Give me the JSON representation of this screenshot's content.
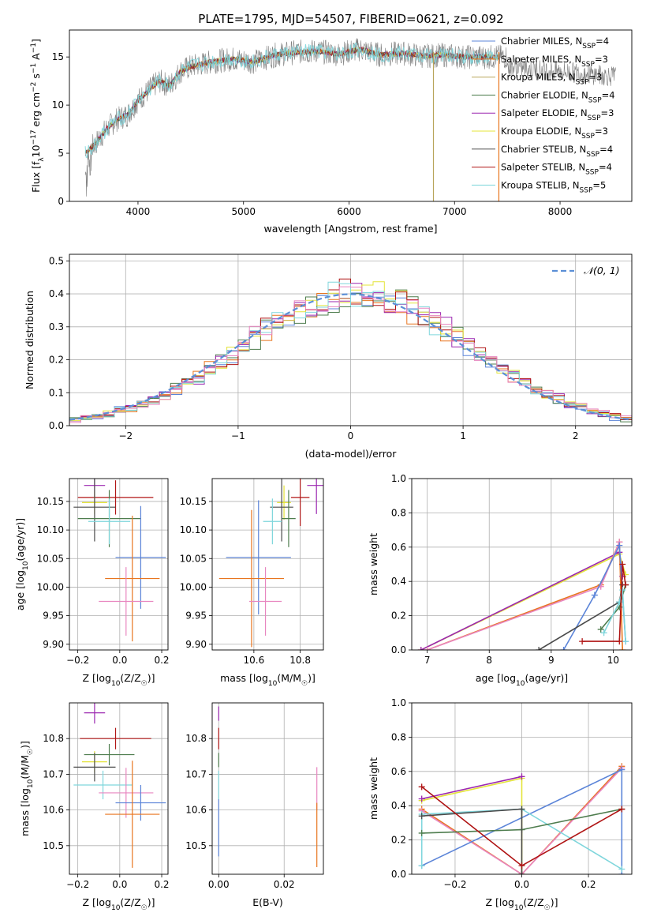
{
  "figure_title": "PLATE=1795, MJD=54507, FIBERID=0621, z=0.092",
  "colors": {
    "Chabrier MILES": "#5b84d8",
    "Salpeter MILES": "#e8751f",
    "Kroupa MILES": "#b8a45a",
    "Chabrier ELODIE": "#4e7d4e",
    "Salpeter ELODIE": "#9b27b0",
    "Kroupa ELODIE": "#e4e43a",
    "Chabrier STELIB": "#4a4a4a",
    "Salpeter STELIB": "#b01515",
    "Kroupa STELIB": "#7fd6dc",
    "pink": "#e886c0",
    "data": "#808080"
  },
  "chart_data": [
    {
      "id": "spectrum",
      "type": "line",
      "title": "PLATE=1795, MJD=54507, FIBERID=0621, z=0.092",
      "xlabel": "wavelength [Angstrom, rest frame]",
      "ylabel": "Flux [fλ10⁻¹⁷ erg cm⁻² s⁻¹ A⁻¹]",
      "xlim": [
        3350,
        8680
      ],
      "ylim": [
        0,
        17.8
      ],
      "xticks": [
        4000,
        5000,
        6000,
        7000,
        8000
      ],
      "yticks": [
        0,
        5,
        10,
        15
      ],
      "legend": "right",
      "legend_entries": [
        {
          "name": "Chabrier MILES",
          "suffix": "=4"
        },
        {
          "name": "Salpeter MILES",
          "suffix": "=3"
        },
        {
          "name": "Kroupa MILES",
          "suffix": "=3"
        },
        {
          "name": "Chabrier ELODIE",
          "suffix": "=4"
        },
        {
          "name": "Salpeter ELODIE",
          "suffix": "=3"
        },
        {
          "name": "Kroupa ELODIE",
          "suffix": "=3"
        },
        {
          "name": "Chabrier STELIB",
          "suffix": "=4"
        },
        {
          "name": "Salpeter STELIB",
          "suffix": "=4"
        },
        {
          "name": "Kroupa STELIB",
          "suffix": "=5"
        }
      ],
      "continuum": {
        "x": [
          3500,
          3600,
          3700,
          3800,
          3900,
          4000,
          4100,
          4200,
          4300,
          4400,
          4500,
          4700,
          4900,
          5100,
          5300,
          5500,
          5700,
          5900,
          6100,
          6300,
          6500,
          6700,
          6900,
          7100,
          7400
        ],
        "y": [
          5,
          6,
          7.5,
          8.5,
          9,
          10.5,
          11.5,
          12.5,
          12,
          13.5,
          14,
          14.5,
          14.8,
          14.5,
          15.2,
          15.5,
          15.6,
          15.3,
          15.8,
          15.2,
          15.4,
          15.1,
          15.2,
          15.0,
          15.0
        ]
      },
      "data_range": [
        3500,
        8530
      ],
      "model_range": [
        3500,
        7420
      ],
      "spikes": [
        {
          "x": 6800,
          "series": "Kroupa MILES"
        },
        {
          "x": 7420,
          "series": "Salpeter MILES"
        }
      ]
    },
    {
      "id": "residuals",
      "type": "histogram",
      "xlabel": "(data-model)/error",
      "ylabel": "Normed distribution",
      "xlim": [
        -2.5,
        2.5
      ],
      "ylim": [
        0,
        0.52
      ],
      "xticks": [
        -2,
        -1,
        0,
        1,
        2
      ],
      "yticks": [
        0.0,
        0.1,
        0.2,
        0.3,
        0.4,
        0.5
      ],
      "grid": true,
      "legend": "top-right",
      "reference_curve": {
        "name": "N(0,1)",
        "mean": 0,
        "sigma": 1,
        "style": "dashed"
      },
      "bin_width": 0.1
    },
    {
      "id": "age-vs-Z",
      "type": "errorbar",
      "xlabel": "Z [log10(Z/Z☉)]",
      "ylabel": "age [log10(age/yr)]",
      "xlim": [
        -0.24,
        0.23
      ],
      "ylim": [
        9.89,
        10.19
      ],
      "xticks": [
        -0.2,
        0.0,
        0.2
      ],
      "yticks": [
        9.9,
        9.95,
        10.0,
        10.05,
        10.1,
        10.15
      ],
      "grid": true,
      "points": [
        {
          "series": "Salpeter ELODIE",
          "x": -0.12,
          "xerr": 0.05,
          "y": 10.178,
          "yerr": 0.02
        },
        {
          "series": "Salpeter STELIB",
          "x": -0.02,
          "xerr": 0.18,
          "y": 10.157,
          "yerr": 0.03
        },
        {
          "series": "Kroupa ELODIE",
          "x": -0.12,
          "xerr": 0.06,
          "y": 10.148,
          "yerr": 0.02
        },
        {
          "series": "Chabrier STELIB",
          "x": -0.12,
          "xerr": 0.1,
          "y": 10.14,
          "yerr": 0.06
        },
        {
          "series": "Chabrier ELODIE",
          "x": -0.05,
          "xerr": 0.15,
          "y": 10.12,
          "yerr": 0.05
        },
        {
          "series": "Kroupa STELIB",
          "x": -0.05,
          "xerr": 0.1,
          "y": 10.115,
          "yerr": 0.04
        },
        {
          "series": "Chabrier MILES",
          "x": 0.1,
          "xerr": 0.12,
          "y": 10.052,
          "yerr": 0.09
        },
        {
          "series": "Salpeter MILES",
          "x": 0.06,
          "xerr": 0.13,
          "y": 10.015,
          "yerr": 0.11
        },
        {
          "series": "pink",
          "x": 0.03,
          "xerr": 0.13,
          "y": 9.975,
          "yerr": 0.06
        }
      ]
    },
    {
      "id": "age-vs-mass",
      "type": "errorbar",
      "xlabel": "mass [log10(M/M☉)]",
      "xlim": [
        10.42,
        10.9
      ],
      "ylim": [
        9.89,
        10.19
      ],
      "xticks": [
        10.6,
        10.8
      ],
      "yticks": [
        9.9,
        9.95,
        10.0,
        10.05,
        10.1,
        10.15
      ],
      "grid": true,
      "points": [
        {
          "series": "Salpeter ELODIE",
          "x": 10.87,
          "xerr": 0.04,
          "y": 10.178,
          "yerr": 0.05
        },
        {
          "series": "Salpeter STELIB",
          "x": 10.8,
          "xerr": 0.04,
          "y": 10.157,
          "yerr": 0.05
        },
        {
          "series": "Kroupa ELODIE",
          "x": 10.73,
          "xerr": 0.03,
          "y": 10.148,
          "yerr": 0.03
        },
        {
          "series": "Chabrier STELIB",
          "x": 10.72,
          "xerr": 0.05,
          "y": 10.14,
          "yerr": 0.06
        },
        {
          "series": "Chabrier ELODIE",
          "x": 10.75,
          "xerr": 0.03,
          "y": 10.12,
          "yerr": 0.05
        },
        {
          "series": "Kroupa STELIB",
          "x": 10.68,
          "xerr": 0.04,
          "y": 10.115,
          "yerr": 0.04
        },
        {
          "series": "Chabrier MILES",
          "x": 10.62,
          "xerr": 0.14,
          "y": 10.052,
          "yerr": 0.1
        },
        {
          "series": "Salpeter MILES",
          "x": 10.59,
          "xerr": 0.14,
          "y": 10.015,
          "yerr": 0.12
        },
        {
          "series": "pink",
          "x": 10.65,
          "xerr": 0.07,
          "y": 9.975,
          "yerr": 0.06
        }
      ]
    },
    {
      "id": "weight-vs-age",
      "type": "line",
      "xlabel": "age [log10(age/yr)]",
      "ylabel": "mass weight",
      "xlim": [
        6.75,
        10.3
      ],
      "ylim": [
        0,
        1
      ],
      "xticks": [
        7,
        8,
        9,
        10
      ],
      "yticks": [
        0.0,
        0.2,
        0.4,
        0.6,
        0.8,
        1.0
      ],
      "grid": true,
      "series": [
        {
          "name": "Kroupa ELODIE",
          "x": [
            6.9,
            10.1,
            10.2
          ],
          "y": [
            0.0,
            0.56,
            0.44
          ]
        },
        {
          "name": "Salpeter ELODIE",
          "x": [
            6.9,
            10.1,
            10.15
          ],
          "y": [
            0.0,
            0.57,
            0.43
          ]
        },
        {
          "name": "Salpeter MILES",
          "x": [
            7.0,
            9.8,
            10.1,
            10.15
          ],
          "y": [
            0.0,
            0.38,
            0.63,
            0.0
          ]
        },
        {
          "name": "pink",
          "x": [
            7.0,
            9.8,
            10.1
          ],
          "y": [
            0.0,
            0.37,
            0.63
          ]
        },
        {
          "name": "Chabrier MILES",
          "x": [
            9.2,
            9.7,
            10.1,
            10.2
          ],
          "y": [
            0.0,
            0.32,
            0.61,
            0.05
          ]
        },
        {
          "name": "Chabrier STELIB",
          "x": [
            8.8,
            10.1,
            10.15
          ],
          "y": [
            0.0,
            0.28,
            0.38
          ]
        },
        {
          "name": "Chabrier ELODIE",
          "x": [
            9.8,
            10.1,
            10.2
          ],
          "y": [
            0.12,
            0.25,
            0.38
          ]
        },
        {
          "name": "Kroupa STELIB",
          "x": [
            9.85,
            10.1,
            10.15,
            10.2
          ],
          "y": [
            0.1,
            0.28,
            0.35,
            0.05
          ]
        },
        {
          "name": "Salpeter STELIB",
          "x": [
            9.5,
            10.1,
            10.15,
            10.2
          ],
          "y": [
            0.05,
            0.05,
            0.5,
            0.38
          ]
        }
      ]
    },
    {
      "id": "mass-vs-Z",
      "type": "errorbar",
      "xlabel": "Z [log10(Z/Z☉)]",
      "ylabel": "mass [log10(M/M☉)]",
      "xlim": [
        -0.24,
        0.23
      ],
      "ylim": [
        10.42,
        10.9
      ],
      "xticks": [
        -0.2,
        0.0,
        0.2
      ],
      "yticks": [
        10.5,
        10.6,
        10.7,
        10.8
      ],
      "grid": true,
      "points": [
        {
          "series": "Salpeter ELODIE",
          "x": -0.12,
          "xerr": 0.05,
          "y": 10.872,
          "yerr": 0.03
        },
        {
          "series": "Salpeter STELIB",
          "x": -0.02,
          "xerr": 0.17,
          "y": 10.8,
          "yerr": 0.03
        },
        {
          "series": "Chabrier ELODIE",
          "x": -0.05,
          "xerr": 0.12,
          "y": 10.755,
          "yerr": 0.03
        },
        {
          "series": "Kroupa ELODIE",
          "x": -0.12,
          "xerr": 0.06,
          "y": 10.735,
          "yerr": 0.03
        },
        {
          "series": "Chabrier STELIB",
          "x": -0.12,
          "xerr": 0.1,
          "y": 10.72,
          "yerr": 0.04
        },
        {
          "series": "Kroupa STELIB",
          "x": -0.08,
          "xerr": 0.14,
          "y": 10.67,
          "yerr": 0.04
        },
        {
          "series": "pink",
          "x": 0.03,
          "xerr": 0.13,
          "y": 10.648,
          "yerr": 0.07
        },
        {
          "series": "Chabrier MILES",
          "x": 0.1,
          "xerr": 0.12,
          "y": 10.62,
          "yerr": 0.05
        },
        {
          "series": "Salpeter MILES",
          "x": 0.06,
          "xerr": 0.13,
          "y": 10.588,
          "yerr": 0.15
        }
      ]
    },
    {
      "id": "mass-vs-EBV",
      "type": "errorbar",
      "xlabel": "E(B-V)",
      "xlim": [
        -0.002,
        0.032
      ],
      "ylim": [
        10.42,
        10.9
      ],
      "xticks": [
        0.0,
        0.02
      ],
      "yticks": [
        10.5,
        10.6,
        10.7,
        10.8
      ],
      "grid": true,
      "points": [
        {
          "series": "Salpeter ELODIE",
          "x": 0.0,
          "y": 10.87,
          "yerr": 0.02
        },
        {
          "series": "Salpeter STELIB",
          "x": 0.0,
          "y": 10.8,
          "yerr": 0.03
        },
        {
          "series": "Chabrier ELODIE",
          "x": 0.0,
          "y": 10.74,
          "yerr": 0.02
        },
        {
          "series": "Kroupa STELIB",
          "x": 0.0,
          "y": 10.67,
          "yerr": 0.04
        },
        {
          "series": "Chabrier MILES",
          "x": 0.0,
          "y": 10.55,
          "yerr": 0.08
        },
        {
          "series": "pink",
          "x": 0.03,
          "y": 10.66,
          "yerr": 0.06
        },
        {
          "series": "Salpeter MILES",
          "x": 0.03,
          "y": 10.53,
          "yerr": 0.09
        }
      ]
    },
    {
      "id": "weight-vs-Z",
      "type": "line",
      "xlabel": "Z [log10(Z/Z☉)]",
      "ylabel": "mass weight",
      "xlim": [
        -0.33,
        0.33
      ],
      "ylim": [
        0,
        1
      ],
      "xticks": [
        -0.2,
        0.0,
        0.2
      ],
      "yticks": [
        0.0,
        0.2,
        0.4,
        0.6,
        0.8,
        1.0
      ],
      "grid": true,
      "series": [
        {
          "name": "Kroupa ELODIE",
          "x": [
            -0.3,
            0.0,
            0.0
          ],
          "y": [
            0.43,
            0.56,
            0.0
          ]
        },
        {
          "name": "Salpeter ELODIE",
          "x": [
            -0.3,
            0.0
          ],
          "y": [
            0.44,
            0.57
          ]
        },
        {
          "name": "Salpeter MILES",
          "x": [
            -0.3,
            0.0,
            0.3
          ],
          "y": [
            0.38,
            0.0,
            0.63
          ]
        },
        {
          "name": "pink",
          "x": [
            -0.3,
            0.0,
            0.3
          ],
          "y": [
            0.37,
            0.0,
            0.62
          ]
        },
        {
          "name": "Chabrier MILES",
          "x": [
            -0.3,
            0.3,
            0.3
          ],
          "y": [
            0.05,
            0.61,
            0.0
          ]
        },
        {
          "name": "Kroupa STELIB",
          "x": [
            -0.3,
            -0.3,
            0.0,
            0.3
          ],
          "y": [
            0.05,
            0.35,
            0.38,
            0.03
          ]
        },
        {
          "name": "Chabrier ELODIE",
          "x": [
            -0.3,
            0.0,
            0.3
          ],
          "y": [
            0.24,
            0.26,
            0.38
          ]
        },
        {
          "name": "Chabrier STELIB",
          "x": [
            -0.3,
            0.0,
            0.0
          ],
          "y": [
            0.34,
            0.38,
            0.0
          ]
        },
        {
          "name": "Salpeter STELIB",
          "x": [
            -0.3,
            0.0,
            0.3
          ],
          "y": [
            0.51,
            0.05,
            0.38
          ]
        }
      ]
    }
  ]
}
